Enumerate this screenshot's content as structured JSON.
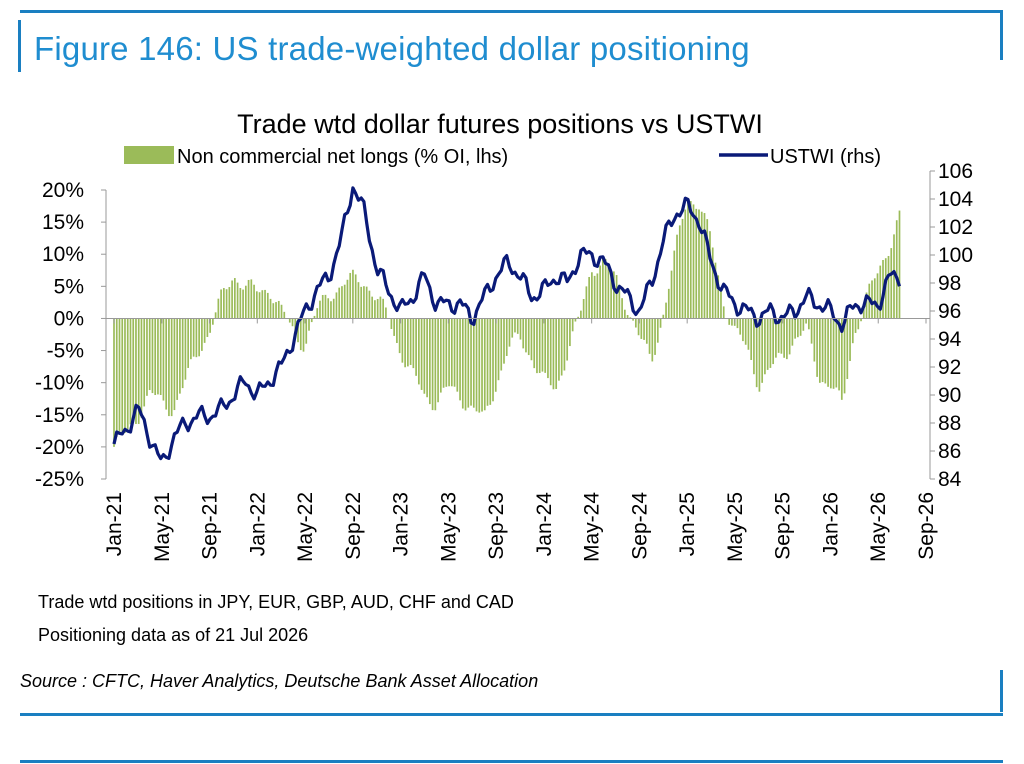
{
  "figure": {
    "title": "Figure 146: US trade-weighted dollar positioning",
    "notes": [
      "Trade wtd positions in JPY, EUR, GBP, AUD, CHF and CAD",
      "Positioning data as of 21 Jul 2026"
    ],
    "source": "Source : CFTC, Haver Analytics, Deutsche Bank Asset Allocation",
    "frame_color": "#1a7fc1",
    "title_color": "#1f8dd0"
  },
  "chart_data": {
    "type": "bar",
    "title": "Trade wtd dollar futures positions  vs USTWI",
    "grid": false,
    "legend_position": "top",
    "colors": {
      "bars": "#9bbb59",
      "line": "#0a1a78"
    },
    "x_tick_labels": [
      "Jan-21",
      "May-21",
      "Sep-21",
      "Jan-22",
      "May-22",
      "Sep-22",
      "Jan-23",
      "May-23",
      "Sep-23",
      "Jan-24",
      "May-24",
      "Sep-24",
      "Jan-25",
      "May-25",
      "Sep-25",
      "Jan-26",
      "May-26",
      "Sep-26"
    ],
    "x_range": [
      "2021-01",
      "2026-09"
    ],
    "y_left": {
      "label": "",
      "range": [
        -25,
        20
      ],
      "ticks": [
        "20%",
        "15%",
        "10%",
        "5%",
        "0%",
        "-5%",
        "-10%",
        "-15%",
        "-20%",
        "-25%"
      ]
    },
    "y_right": {
      "label": "",
      "range": [
        84,
        106
      ],
      "ticks": [
        "106",
        "104",
        "102",
        "100",
        "98",
        "96",
        "94",
        "92",
        "90",
        "88",
        "86",
        "84"
      ]
    },
    "series": [
      {
        "name": "Non commercial net longs (% OI, lhs)",
        "type": "bar",
        "axis": "left",
        "anchors": [
          [
            "2021-01",
            -20
          ],
          [
            "2021-02",
            -18
          ],
          [
            "2021-03",
            -15
          ],
          [
            "2021-04",
            -12
          ],
          [
            "2021-05",
            -13
          ],
          [
            "2021-06",
            -14
          ],
          [
            "2021-07",
            -10
          ],
          [
            "2021-08",
            -5
          ],
          [
            "2021-09",
            -2
          ],
          [
            "2021-10",
            3
          ],
          [
            "2021-11",
            7
          ],
          [
            "2021-12",
            5
          ],
          [
            "2022-01",
            4
          ],
          [
            "2022-02",
            5
          ],
          [
            "2022-03",
            1
          ],
          [
            "2022-04",
            -2
          ],
          [
            "2022-05",
            -4
          ],
          [
            "2022-06",
            1
          ],
          [
            "2022-07",
            4
          ],
          [
            "2022-08",
            5
          ],
          [
            "2022-09",
            6
          ],
          [
            "2022-10",
            6
          ],
          [
            "2022-11",
            3
          ],
          [
            "2022-12",
            0
          ],
          [
            "2023-01",
            -5
          ],
          [
            "2023-02",
            -9
          ],
          [
            "2023-03",
            -12
          ],
          [
            "2023-04",
            -13
          ],
          [
            "2023-05",
            -11
          ],
          [
            "2023-06",
            -12
          ],
          [
            "2023-07",
            -14
          ],
          [
            "2023-08",
            -16
          ],
          [
            "2023-09",
            -10
          ],
          [
            "2023-10",
            -5
          ],
          [
            "2023-11",
            -3
          ],
          [
            "2023-12",
            -6
          ],
          [
            "2024-01",
            -10
          ],
          [
            "2024-02",
            -11
          ],
          [
            "2024-03",
            -5
          ],
          [
            "2024-04",
            0
          ],
          [
            "2024-05",
            8
          ],
          [
            "2024-06",
            9
          ],
          [
            "2024-07",
            6
          ],
          [
            "2024-08",
            2
          ],
          [
            "2024-09",
            -3
          ],
          [
            "2024-10",
            -7
          ],
          [
            "2024-11",
            1
          ],
          [
            "2024-12",
            10
          ],
          [
            "2025-01",
            19
          ],
          [
            "2025-02",
            18
          ],
          [
            "2025-03",
            12
          ],
          [
            "2025-04",
            3
          ],
          [
            "2025-05",
            -2
          ],
          [
            "2025-06",
            -5
          ],
          [
            "2025-07",
            -10
          ],
          [
            "2025-08",
            -8
          ],
          [
            "2025-09",
            -6
          ],
          [
            "2025-10",
            -3
          ],
          [
            "2025-11",
            -2
          ],
          [
            "2025-12",
            -9
          ],
          [
            "2026-01",
            -10
          ],
          [
            "2026-02",
            -14
          ],
          [
            "2026-03",
            -2
          ],
          [
            "2026-04",
            3
          ],
          [
            "2026-05",
            7
          ],
          [
            "2026-06",
            12
          ],
          [
            "2026-07",
            17
          ]
        ]
      },
      {
        "name": "USTWI (rhs)",
        "type": "line",
        "axis": "right",
        "anchors": [
          [
            "2021-01",
            86.5
          ],
          [
            "2021-02",
            87.5
          ],
          [
            "2021-03",
            89
          ],
          [
            "2021-04",
            87
          ],
          [
            "2021-05",
            85
          ],
          [
            "2021-06",
            87
          ],
          [
            "2021-07",
            88
          ],
          [
            "2021-08",
            88.5
          ],
          [
            "2021-09",
            88.5
          ],
          [
            "2021-10",
            89
          ],
          [
            "2021-11",
            90
          ],
          [
            "2021-12",
            91
          ],
          [
            "2022-01",
            90
          ],
          [
            "2022-02",
            91
          ],
          [
            "2022-03",
            92
          ],
          [
            "2022-04",
            94
          ],
          [
            "2022-05",
            96
          ],
          [
            "2022-06",
            97.5
          ],
          [
            "2022-07",
            98.5
          ],
          [
            "2022-08",
            101
          ],
          [
            "2022-09",
            105
          ],
          [
            "2022-10",
            103
          ],
          [
            "2022-11",
            99
          ],
          [
            "2022-12",
            97.5
          ],
          [
            "2023-01",
            96
          ],
          [
            "2023-02",
            97
          ],
          [
            "2023-03",
            98.5
          ],
          [
            "2023-04",
            96.5
          ],
          [
            "2023-05",
            96.5
          ],
          [
            "2023-06",
            96.5
          ],
          [
            "2023-07",
            95.5
          ],
          [
            "2023-08",
            97
          ],
          [
            "2023-09",
            98.5
          ],
          [
            "2023-10",
            99.5
          ],
          [
            "2023-11",
            98.5
          ],
          [
            "2023-12",
            97
          ],
          [
            "2024-01",
            97.5
          ],
          [
            "2024-02",
            98.5
          ],
          [
            "2024-03",
            98
          ],
          [
            "2024-04",
            100
          ],
          [
            "2024-05",
            100
          ],
          [
            "2024-06",
            99.5
          ],
          [
            "2024-07",
            98
          ],
          [
            "2024-08",
            97
          ],
          [
            "2024-09",
            96
          ],
          [
            "2024-10",
            98
          ],
          [
            "2024-11",
            101
          ],
          [
            "2024-12",
            103
          ],
          [
            "2025-01",
            103.5
          ],
          [
            "2025-02",
            102.5
          ],
          [
            "2025-03",
            99.5
          ],
          [
            "2025-04",
            97.5
          ],
          [
            "2025-05",
            96.5
          ],
          [
            "2025-06",
            96
          ],
          [
            "2025-07",
            95.5
          ],
          [
            "2025-08",
            96
          ],
          [
            "2025-09",
            95.5
          ],
          [
            "2025-10",
            96
          ],
          [
            "2025-11",
            97
          ],
          [
            "2025-12",
            96.5
          ],
          [
            "2026-01",
            96
          ],
          [
            "2026-02",
            95
          ],
          [
            "2026-03",
            96.5
          ],
          [
            "2026-04",
            96.5
          ],
          [
            "2026-05",
            96.5
          ],
          [
            "2026-06",
            98.5
          ],
          [
            "2026-07",
            98.5
          ]
        ]
      }
    ]
  }
}
